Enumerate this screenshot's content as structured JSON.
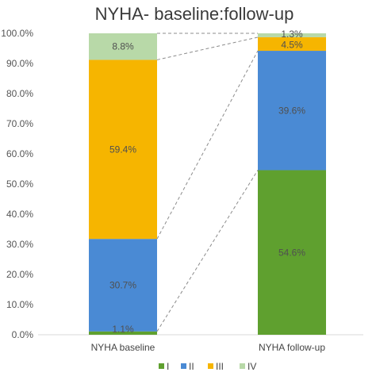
{
  "chart_data": {
    "type": "bar",
    "stacked": true,
    "title": "NYHA- baseline:follow-up",
    "categories": [
      "NYHA baseline",
      "NYHA follow-up"
    ],
    "series": [
      {
        "name": "I",
        "values": [
          1.1,
          54.6
        ],
        "labels": [
          "1.1%",
          "54.6%"
        ],
        "color": "#5fa02f"
      },
      {
        "name": "II",
        "values": [
          30.7,
          39.6
        ],
        "labels": [
          "30.7%",
          "39.6%"
        ],
        "color": "#4a8ad4"
      },
      {
        "name": "III",
        "values": [
          59.4,
          4.5
        ],
        "labels": [
          "59.4%",
          "4.5%"
        ],
        "color": "#f6b500"
      },
      {
        "name": "IV",
        "values": [
          8.8,
          1.3
        ],
        "labels": [
          "8.8%",
          "1.3%"
        ],
        "color": "#b8d9a8"
      }
    ],
    "ylim": [
      0,
      100
    ],
    "yticks": [
      "0.0%",
      "10.0%",
      "20.0%",
      "30.0%",
      "40.0%",
      "50.0%",
      "60.0%",
      "70.0%",
      "80.0%",
      "90.0%",
      "100.0%"
    ],
    "connector_lines": true,
    "legend_position": "bottom"
  }
}
